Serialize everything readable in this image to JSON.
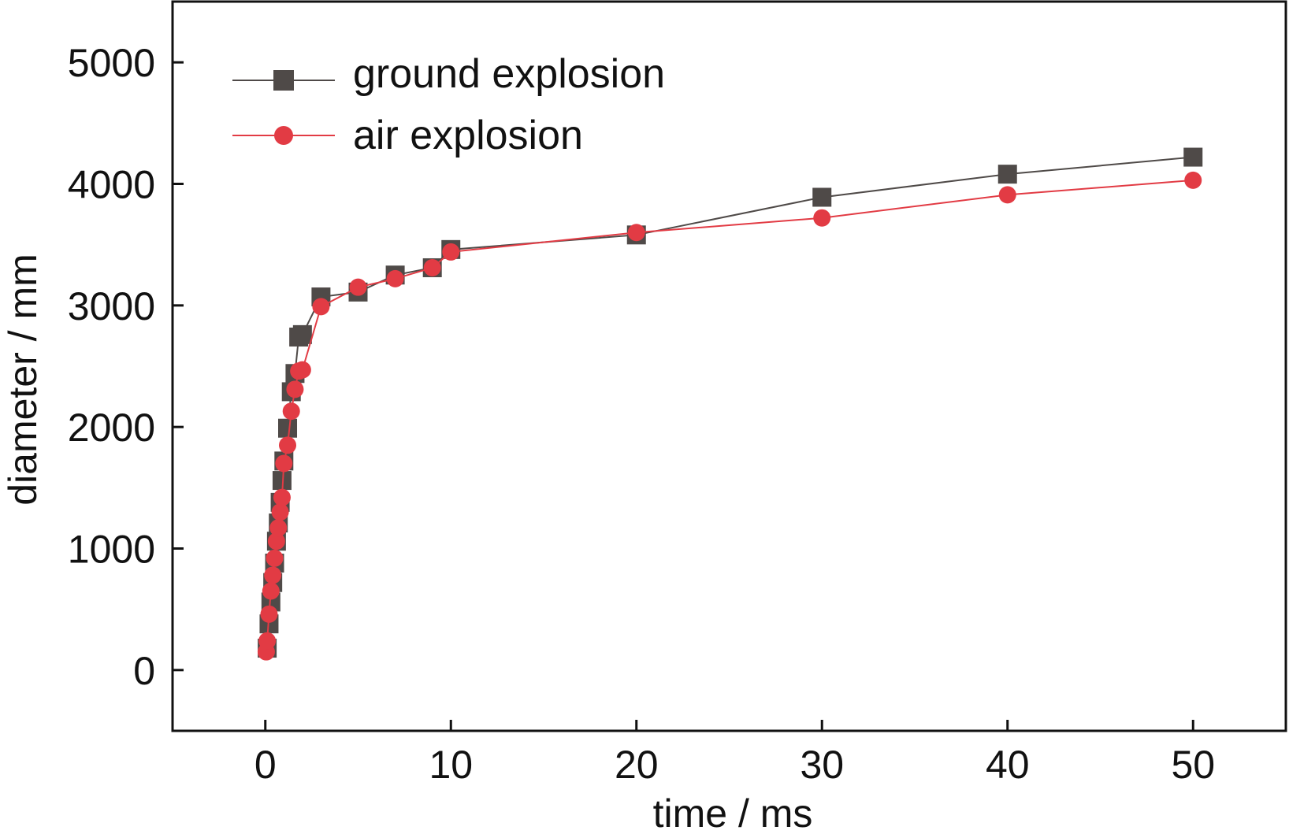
{
  "chart_data": {
    "type": "line",
    "title": "",
    "xlabel": "time / ms",
    "ylabel": "diameter / mm",
    "xlim": [
      -5,
      55
    ],
    "ylim": [
      -500,
      5500
    ],
    "xticks": [
      0,
      10,
      20,
      30,
      40,
      50
    ],
    "xtick_labels": [
      "0",
      "10",
      "20",
      "30",
      "40",
      "50"
    ],
    "yticks": [
      0,
      1000,
      2000,
      3000,
      4000,
      5000
    ],
    "ytick_labels": [
      "0",
      "1000",
      "2000",
      "3000",
      "4000",
      "5000"
    ],
    "grid": false,
    "legend": "top-left",
    "series": [
      {
        "name": "ground explosion",
        "color": "#4f4a48",
        "marker": "square",
        "x": [
          0.1,
          0.2,
          0.3,
          0.4,
          0.5,
          0.6,
          0.7,
          0.8,
          0.9,
          1.0,
          1.2,
          1.4,
          1.6,
          1.8,
          2.0,
          3.0,
          5.0,
          7.0,
          9.0,
          10.0,
          20.0,
          30.0,
          40.0,
          50.0
        ],
        "y": [
          180,
          380,
          560,
          720,
          880,
          1060,
          1210,
          1380,
          1560,
          1720,
          1990,
          2290,
          2440,
          2740,
          2760,
          3070,
          3110,
          3250,
          3310,
          3460,
          3580,
          3890,
          4080,
          4220
        ]
      },
      {
        "name": "air explosion",
        "color": "#e23b44",
        "marker": "circle",
        "x": [
          0.05,
          0.1,
          0.2,
          0.3,
          0.4,
          0.5,
          0.6,
          0.7,
          0.8,
          0.9,
          1.0,
          1.2,
          1.4,
          1.6,
          1.8,
          2.0,
          3.0,
          5.0,
          7.0,
          9.0,
          10.0,
          20.0,
          30.0,
          40.0,
          50.0
        ],
        "y": [
          150,
          240,
          460,
          650,
          780,
          920,
          1060,
          1170,
          1300,
          1420,
          1700,
          1850,
          2130,
          2310,
          2460,
          2470,
          2990,
          3150,
          3220,
          3310,
          3440,
          3600,
          3720,
          3910,
          4030
        ]
      }
    ]
  }
}
